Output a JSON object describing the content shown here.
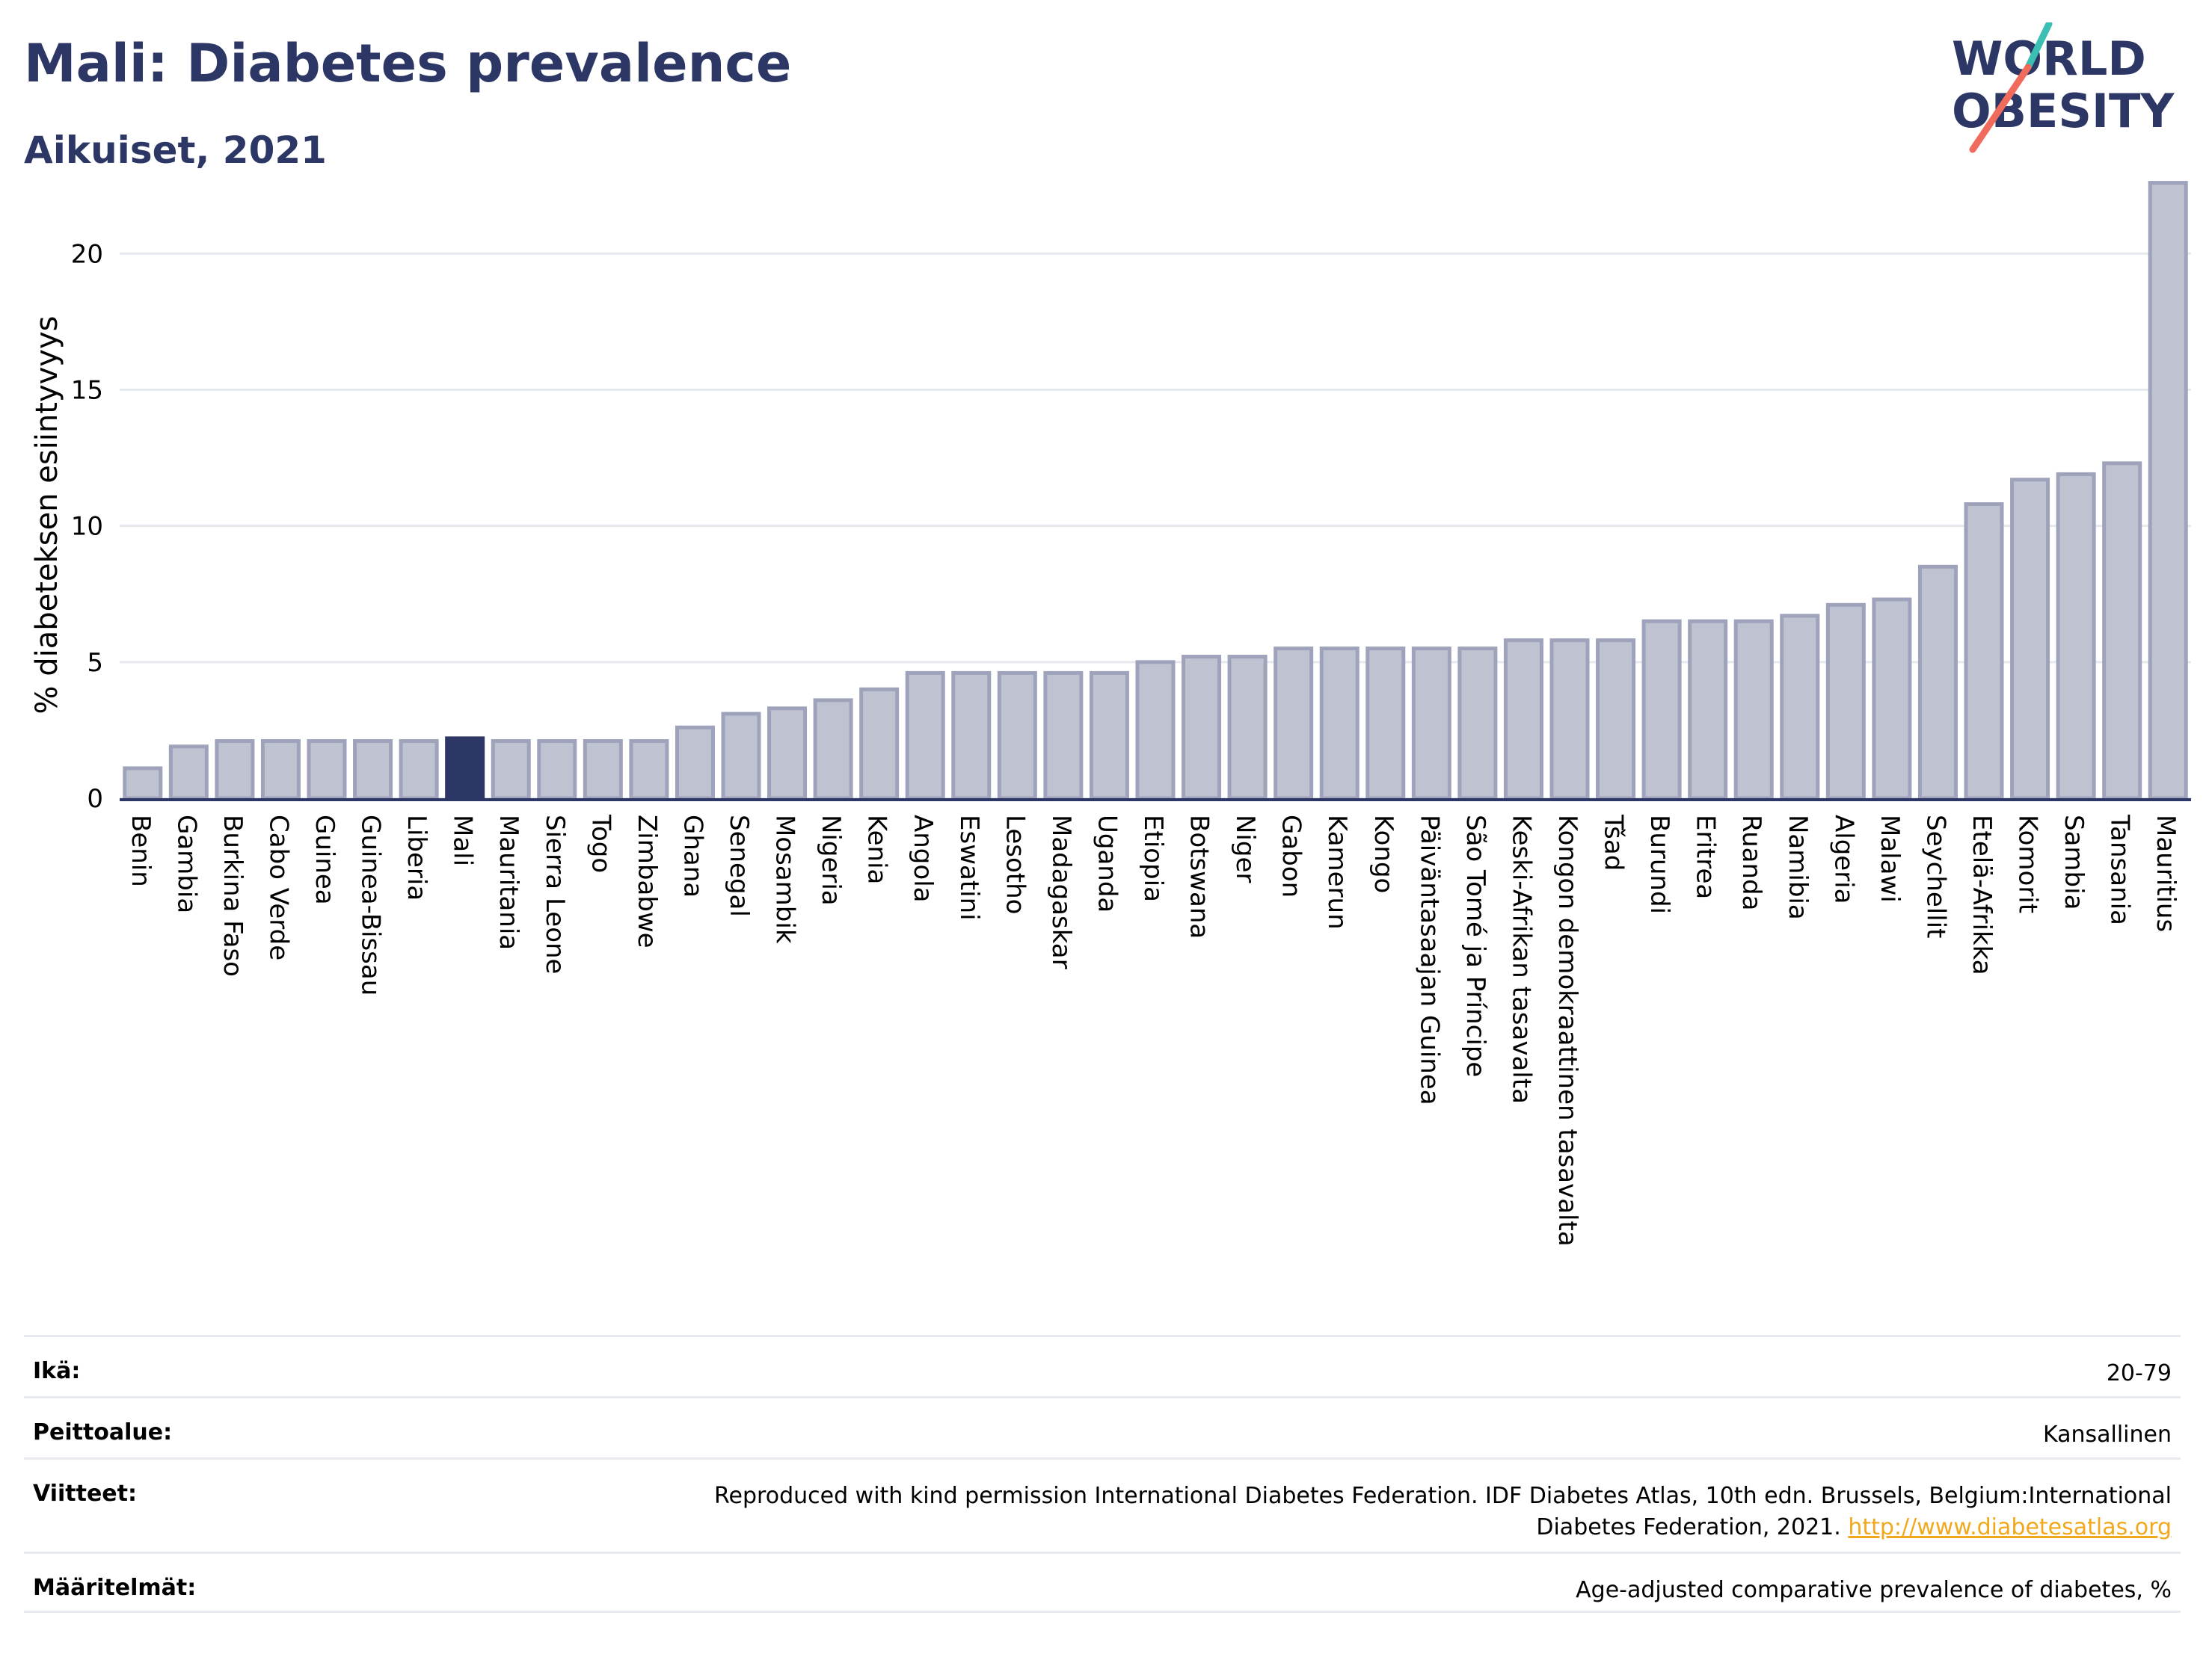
{
  "header": {
    "title": "Mali: Diabetes prevalence",
    "subtitle": "Aikuiset, 2021",
    "logo_text_top": "WORLD",
    "logo_text_bottom": "OBESITY"
  },
  "chart_data": {
    "type": "bar",
    "ylabel": "% diabeteksen esiintyvyys",
    "ylim": [
      0,
      23
    ],
    "yticks": [
      0,
      5,
      10,
      15,
      20
    ],
    "grid": true,
    "highlight": "Mali",
    "colors": {
      "bar": "#bfc3d1",
      "bar_edge": "#9ea3bb",
      "highlight": "#2d3766",
      "grid": "#e6e8ef"
    },
    "categories": [
      "Benin",
      "Gambia",
      "Burkina Faso",
      "Cabo Verde",
      "Guinea",
      "Guinea-Bissau",
      "Liberia",
      "Mali",
      "Mauritania",
      "Sierra Leone",
      "Togo",
      "Zimbabwe",
      "Ghana",
      "Senegal",
      "Mosambik",
      "Nigeria",
      "Kenia",
      "Angola",
      "Eswatini",
      "Lesotho",
      "Madagaskar",
      "Uganda",
      "Etiopia",
      "Botswana",
      "Niger",
      "Gabon",
      "Kamerun",
      "Kongo",
      "Päiväntasaajan Guinea",
      "São Tomé ja Príncipe",
      "Keski-Afrikan tasavalta",
      "Kongon demokraattinen tasavalta",
      "Tšad",
      "Burundi",
      "Eritrea",
      "Ruanda",
      "Namibia",
      "Algeria",
      "Malawi",
      "Seychellit",
      "Etelä-Afrikka",
      "Komorit",
      "Sambia",
      "Tansania",
      "Mauritius"
    ],
    "values": [
      1.1,
      1.9,
      2.1,
      2.1,
      2.1,
      2.1,
      2.1,
      2.2,
      2.1,
      2.1,
      2.1,
      2.1,
      2.6,
      3.1,
      3.3,
      3.6,
      4.0,
      4.6,
      4.6,
      4.6,
      4.6,
      4.6,
      5.0,
      5.2,
      5.2,
      5.5,
      5.5,
      5.5,
      5.5,
      5.5,
      5.8,
      5.8,
      5.8,
      6.5,
      6.5,
      6.5,
      6.7,
      7.1,
      7.3,
      8.5,
      10.8,
      11.7,
      11.9,
      12.3,
      22.6
    ]
  },
  "meta": {
    "rows": [
      {
        "label": "Ikä:",
        "value": "20-79"
      },
      {
        "label": "Peittoalue:",
        "value": "Kansallinen"
      },
      {
        "label": "Viitteet:",
        "value": "Reproduced with kind permission International Diabetes Federation.  IDF Diabetes Atlas, 10th edn. Brussels, Belgium:International",
        "value2": "Diabetes Federation, 2021.",
        "link": "http://www.diabetesatlas.org"
      },
      {
        "label": "Määritelmät:",
        "value": "Age-adjusted comparative prevalence of diabetes, %"
      }
    ]
  }
}
